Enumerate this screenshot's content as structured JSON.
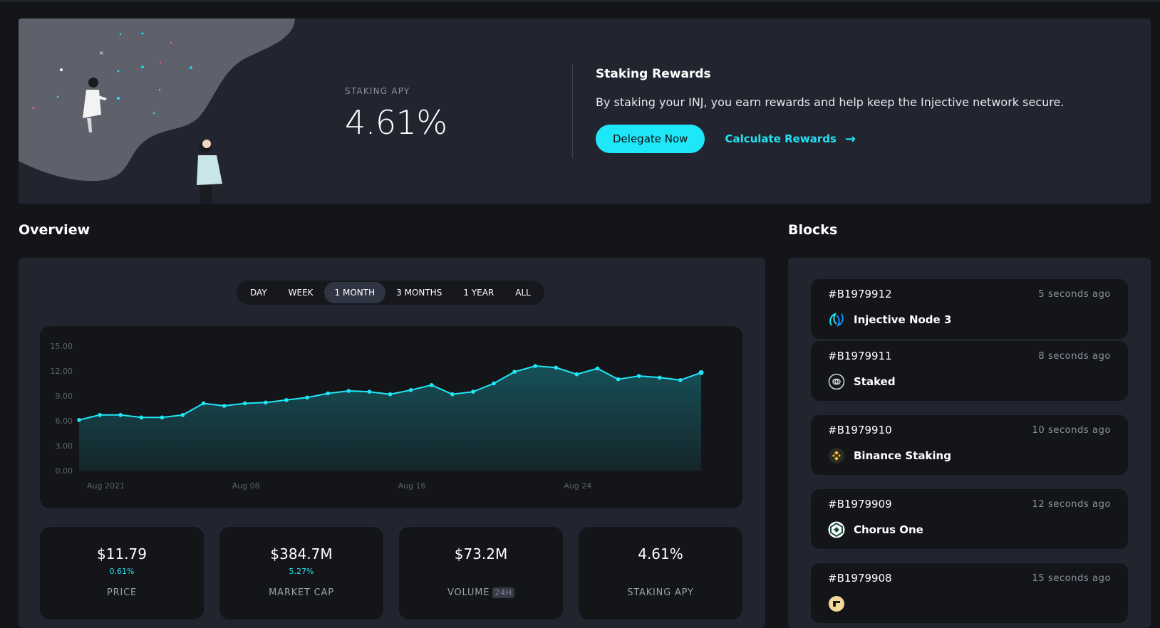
{
  "hero": {
    "apy_label": "STAKING APY",
    "apy_value": "4.61%",
    "rewards_title": "Staking Rewards",
    "rewards_desc": "By staking your INJ, you earn rewards and help keep the Injective network secure.",
    "delegate_label": "Delegate Now",
    "calculate_label": "Calculate Rewards"
  },
  "overview": {
    "title": "Overview",
    "range_tabs": [
      "DAY",
      "WEEK",
      "1 MONTH",
      "3 MONTHS",
      "1 YEAR",
      "ALL"
    ],
    "active_range": "1 MONTH"
  },
  "chart_data": {
    "type": "area",
    "title": "",
    "xlabel": "",
    "ylabel": "",
    "ylim": [
      0,
      15
    ],
    "yticks": [
      "15.00",
      "12.00",
      "9.00",
      "6.00",
      "3.00",
      "0.00"
    ],
    "xticks": [
      "Aug 2021",
      "Aug 08",
      "Aug 16",
      "Aug 24"
    ],
    "grid": false,
    "color": "#1ee8f7",
    "values": [
      6.1,
      6.7,
      6.7,
      6.4,
      6.4,
      6.7,
      8.1,
      7.8,
      8.1,
      8.2,
      8.5,
      8.8,
      9.3,
      9.6,
      9.5,
      9.2,
      9.7,
      10.3,
      9.2,
      9.5,
      10.5,
      11.9,
      12.6,
      12.4,
      11.6,
      12.3,
      11.0,
      11.4,
      11.2,
      10.9,
      11.8
    ]
  },
  "stats": [
    {
      "value": "$11.79",
      "change": "0.61%",
      "label": "PRICE",
      "badge": ""
    },
    {
      "value": "$384.7M",
      "change": "5.27%",
      "label": "MARKET CAP",
      "badge": ""
    },
    {
      "value": "$73.2M",
      "change": "",
      "label": "VOLUME",
      "badge": "24H"
    },
    {
      "value": "4.61%",
      "change": "",
      "label": "STAKING APY",
      "badge": ""
    }
  ],
  "blocks": {
    "title": "Blocks",
    "items": [
      {
        "number": "#B1979912",
        "time": "5 seconds ago",
        "validator": "Injective Node 3",
        "icon": "injective-icon"
      },
      {
        "number": "#B1979911",
        "time": "8 seconds ago",
        "validator": "Staked",
        "icon": "staked-icon"
      },
      {
        "number": "#B1979910",
        "time": "10 seconds ago",
        "validator": "Binance Staking",
        "icon": "binance-icon"
      },
      {
        "number": "#B1979909",
        "time": "12 seconds ago",
        "validator": "Chorus One",
        "icon": "chorus-one-icon"
      },
      {
        "number": "#B1979908",
        "time": "15 seconds ago",
        "validator": "",
        "icon": "validator-icon"
      }
    ]
  }
}
